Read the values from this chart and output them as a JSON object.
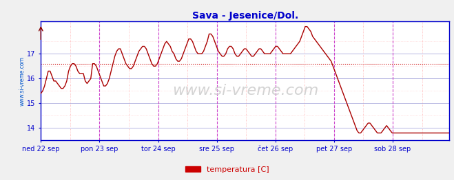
{
  "title": "Sava - Jesenice/Dol.",
  "title_color": "#0000cc",
  "ylabel_text": "www.si-vreme.com",
  "legend_label": "temperatura [C]",
  "legend_color": "#cc0000",
  "bg_color": "#f0f0f0",
  "plot_bg_color": "#ffffff",
  "line_color": "#aa0000",
  "avg_line_color": "#cc0000",
  "avg_value": 16.6,
  "ylim": [
    13.5,
    18.3
  ],
  "yticks": [
    14,
    15,
    16,
    17
  ],
  "grid_major_color": "#aaaaff",
  "grid_minor_color": "#ffaaaa",
  "vline_major_color": "#cc44cc",
  "vline_minor_color": "#ffcccc",
  "axis_color": "#0000cc",
  "tick_color": "#0000cc",
  "watermark": "www.si-vreme.com",
  "watermark_color": "#cccccc",
  "x_labels": [
    "ned 22 sep",
    "pon 23 sep",
    "tor 24 sep",
    "sre 25 sep",
    "čet 26 sep",
    "pet 27 sep",
    "sob 28 sep"
  ],
  "temperature_data": [
    15.4,
    15.5,
    15.7,
    16.0,
    16.3,
    16.3,
    16.1,
    15.9,
    15.9,
    15.8,
    15.7,
    15.6,
    15.6,
    15.7,
    15.9,
    16.3,
    16.5,
    16.6,
    16.6,
    16.5,
    16.3,
    16.2,
    16.2,
    16.2,
    15.9,
    15.8,
    15.9,
    16.0,
    16.6,
    16.6,
    16.5,
    16.3,
    16.1,
    15.9,
    15.7,
    15.7,
    15.8,
    16.0,
    16.3,
    16.6,
    16.9,
    17.1,
    17.2,
    17.2,
    17.0,
    16.8,
    16.6,
    16.5,
    16.4,
    16.4,
    16.5,
    16.7,
    16.9,
    17.1,
    17.2,
    17.3,
    17.3,
    17.2,
    17.0,
    16.8,
    16.6,
    16.5,
    16.5,
    16.6,
    16.8,
    17.0,
    17.2,
    17.4,
    17.5,
    17.4,
    17.3,
    17.1,
    17.0,
    16.8,
    16.7,
    16.7,
    16.8,
    17.0,
    17.2,
    17.4,
    17.6,
    17.6,
    17.5,
    17.3,
    17.1,
    17.0,
    17.0,
    17.0,
    17.1,
    17.3,
    17.5,
    17.8,
    17.8,
    17.7,
    17.5,
    17.3,
    17.1,
    17.0,
    16.9,
    16.9,
    17.0,
    17.2,
    17.3,
    17.3,
    17.2,
    17.0,
    16.9,
    16.9,
    17.0,
    17.1,
    17.2,
    17.2,
    17.1,
    17.0,
    16.9,
    16.9,
    17.0,
    17.1,
    17.2,
    17.2,
    17.1,
    17.0,
    17.0,
    17.0,
    17.0,
    17.1,
    17.2,
    17.3,
    17.3,
    17.2,
    17.1,
    17.0,
    17.0,
    17.0,
    17.0,
    17.0,
    17.1,
    17.2,
    17.3,
    17.4,
    17.5,
    17.7,
    17.9,
    18.1,
    18.1,
    18.0,
    17.9,
    17.7,
    17.6,
    17.5,
    17.4,
    17.3,
    17.2,
    17.1,
    17.0,
    16.9,
    16.8,
    16.7,
    16.5,
    16.3,
    16.1,
    15.9,
    15.7,
    15.5,
    15.3,
    15.1,
    14.9,
    14.7,
    14.5,
    14.3,
    14.1,
    13.9,
    13.8,
    13.8,
    13.9,
    14.0,
    14.1,
    14.2,
    14.2,
    14.1,
    14.0,
    13.9,
    13.8,
    13.8,
    13.8,
    13.9,
    14.0,
    14.1,
    14.0,
    13.9,
    13.8,
    13.8,
    13.8,
    13.8,
    13.8,
    13.8,
    13.8,
    13.8,
    13.8,
    13.8,
    13.8,
    13.8,
    13.8,
    13.8,
    13.8,
    13.8,
    13.8,
    13.8,
    13.8,
    13.8,
    13.8,
    13.8,
    13.8,
    13.8,
    13.8,
    13.8,
    13.8,
    13.8,
    13.8,
    13.8,
    13.8,
    13.8
  ]
}
